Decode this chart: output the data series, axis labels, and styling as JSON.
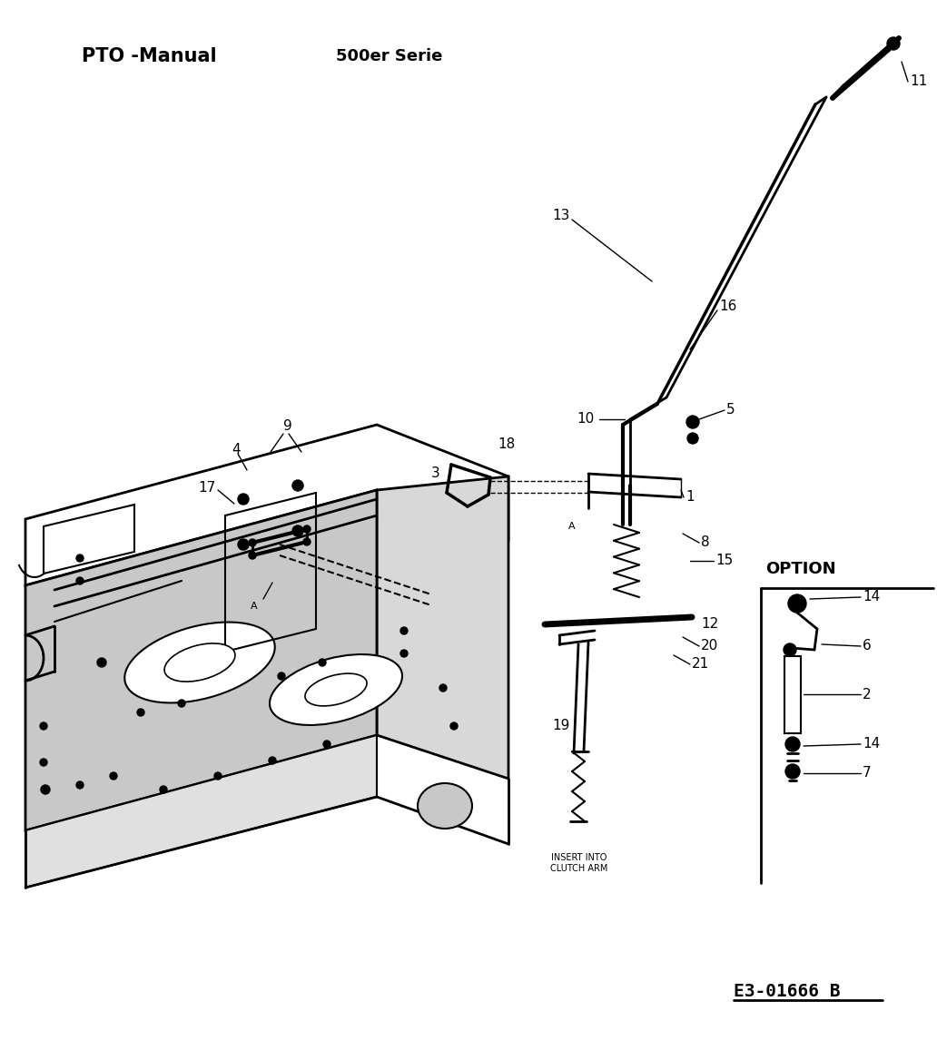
{
  "title_left": "PTO -Manual",
  "title_center": "500er Serie",
  "doc_number": "E3-01666 B",
  "background_color": "#ffffff",
  "text_color": "#000000",
  "option_label": "OPTION",
  "insert_text": "INSERT INTO\nCLUTCH ARM",
  "figsize": [
    10.32,
    11.68
  ],
  "dpi": 100
}
